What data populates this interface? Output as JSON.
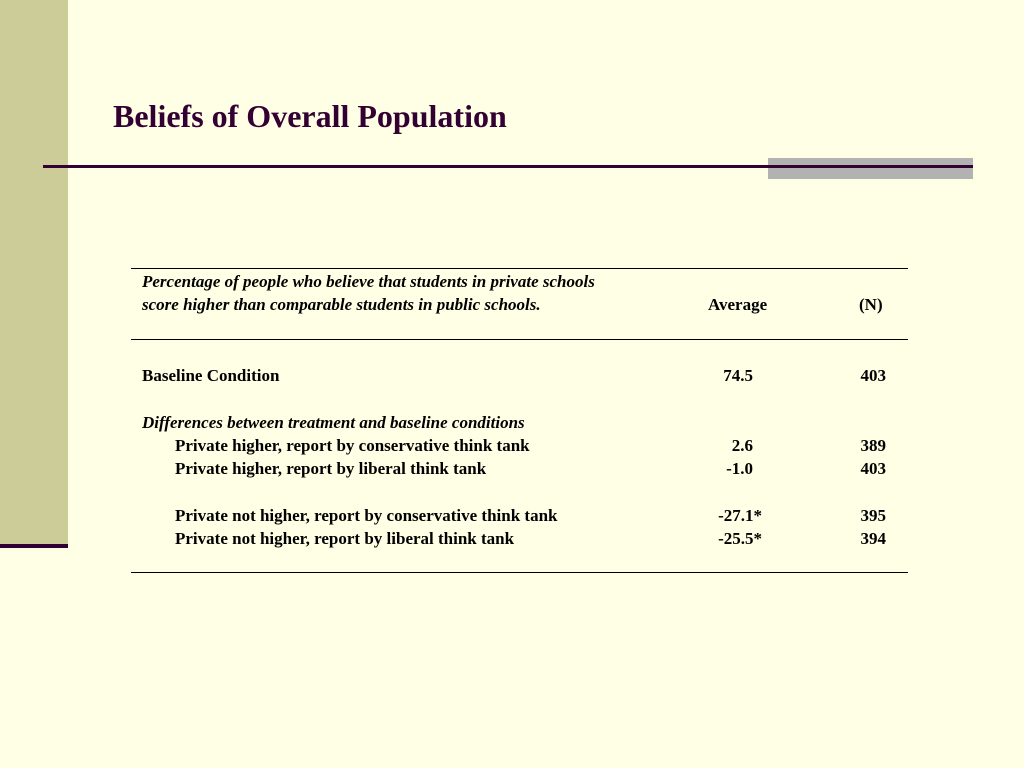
{
  "slide": {
    "title": "Beliefs of Overall Population"
  },
  "table": {
    "header": {
      "description": "Percentage of people who believe that students in private schools score higher than comparable students in public schools.",
      "col_average": "Average",
      "col_n": "(N)"
    },
    "baseline": {
      "label": "Baseline Condition",
      "average": "74.5",
      "n": "403"
    },
    "differences_heading": "Differences between treatment and baseline conditions",
    "rows": [
      {
        "label": "Private higher, report by conservative think tank",
        "average": "2.6",
        "n": "389"
      },
      {
        "label": "Private higher, report by liberal think tank",
        "average": "-1.0",
        "n": "403"
      },
      {
        "label": "Private not higher, report by conservative think tank",
        "average": "-27.1*",
        "n": "395"
      },
      {
        "label": "Private not higher, report by liberal think tank",
        "average": "-25.5*",
        "n": "394"
      }
    ]
  },
  "colors": {
    "background": "#FFFFE5",
    "left_band": "#CCCC99",
    "title": "#330033",
    "rule": "#330033",
    "accent_bar": "#B2B2B2"
  }
}
